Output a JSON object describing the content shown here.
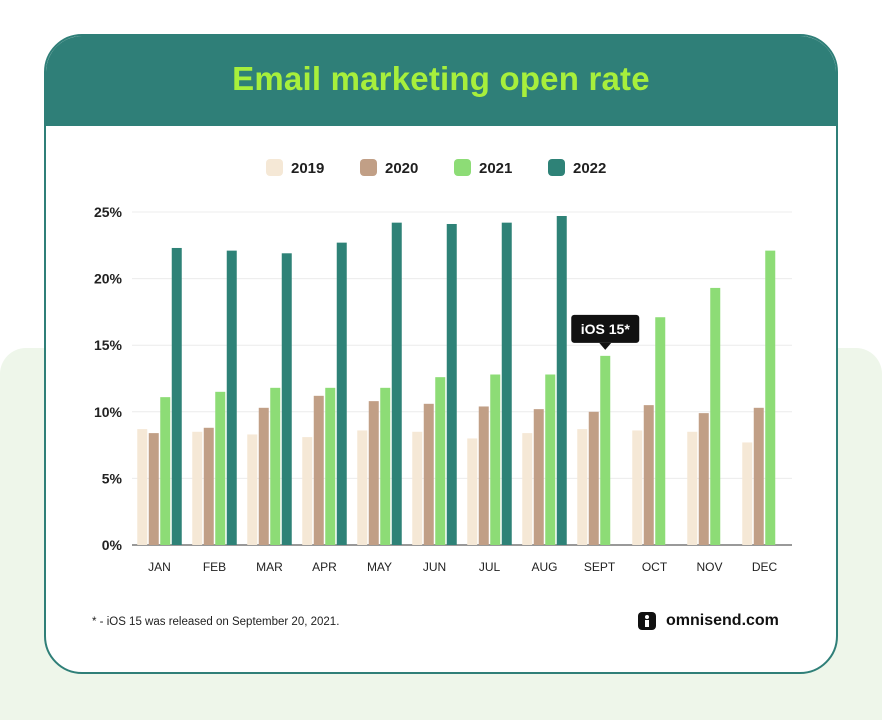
{
  "title": "Email marketing open rate",
  "chart_data": {
    "type": "bar",
    "categories": [
      "JAN",
      "FEB",
      "MAR",
      "APR",
      "MAY",
      "JUN",
      "JUL",
      "AUG",
      "SEPT",
      "OCT",
      "NOV",
      "DEC"
    ],
    "series": [
      {
        "name": "2019",
        "color": "#f5e8d6",
        "values": [
          8.7,
          8.5,
          8.3,
          8.1,
          8.6,
          8.5,
          8.0,
          8.4,
          8.7,
          8.6,
          8.5,
          7.7
        ]
      },
      {
        "name": "2020",
        "color": "#c19f86",
        "values": [
          8.4,
          8.8,
          10.3,
          11.2,
          10.8,
          10.6,
          10.4,
          10.2,
          10.0,
          10.5,
          9.9,
          10.3
        ]
      },
      {
        "name": "2021",
        "color": "#8ddc76",
        "values": [
          11.1,
          11.5,
          11.8,
          11.8,
          11.8,
          12.6,
          12.8,
          12.8,
          14.2,
          17.1,
          19.3,
          22.1
        ]
      },
      {
        "name": "2022",
        "color": "#2e8277",
        "values": [
          22.3,
          22.1,
          21.9,
          22.7,
          24.2,
          24.1,
          24.2,
          24.7,
          null,
          null,
          null,
          null
        ]
      }
    ],
    "ylim": [
      0,
      25
    ],
    "yticks": [
      "0%",
      "5%",
      "10%",
      "15%",
      "20%",
      "25%"
    ],
    "grid": true,
    "legend_position": "top-center",
    "annotation": {
      "text": "iOS 15*",
      "category": "SEPT",
      "series": "2021"
    }
  },
  "footnote": "*  - iOS 15 was released on September 20, 2021.",
  "brand": "omnisend.com",
  "colors": {
    "header": "#2f7f78",
    "title": "#a7ef3c",
    "background_tint": "#eef6ea"
  }
}
